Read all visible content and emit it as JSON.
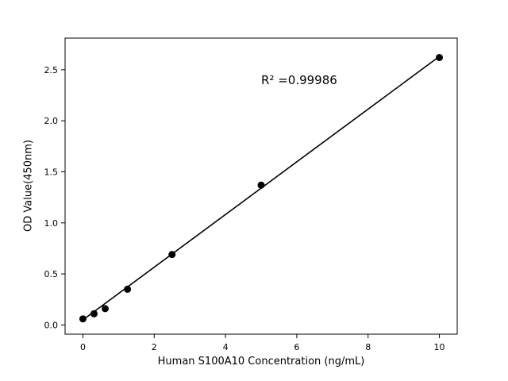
{
  "chart_data": {
    "type": "scatter",
    "title": "",
    "xlabel": "Human S100A10 Concentration (ng/mL)",
    "ylabel": "OD Value(450nm)",
    "annotation": "R² =0.99986",
    "annotation_position": {
      "x": 5.0,
      "y": 2.4
    },
    "x": [
      0,
      0.3125,
      0.625,
      1.25,
      2.5,
      5,
      10
    ],
    "y": [
      0.06,
      0.11,
      0.16,
      0.35,
      0.69,
      1.37,
      2.62
    ],
    "fit_line": {
      "x": [
        0,
        10
      ],
      "y": [
        0.05,
        2.63
      ]
    },
    "xlim": [
      -0.5,
      10.5
    ],
    "ylim": [
      -0.09,
      2.81
    ],
    "xticks": [
      0,
      2,
      4,
      6,
      8,
      10
    ],
    "yticks": [
      0.0,
      0.5,
      1.0,
      1.5,
      2.0,
      2.5
    ],
    "grid": false,
    "legend": false,
    "marker_color": "#000000",
    "line_color": "#000000",
    "frame_color": "#000000",
    "background_color": "#ffffff"
  }
}
